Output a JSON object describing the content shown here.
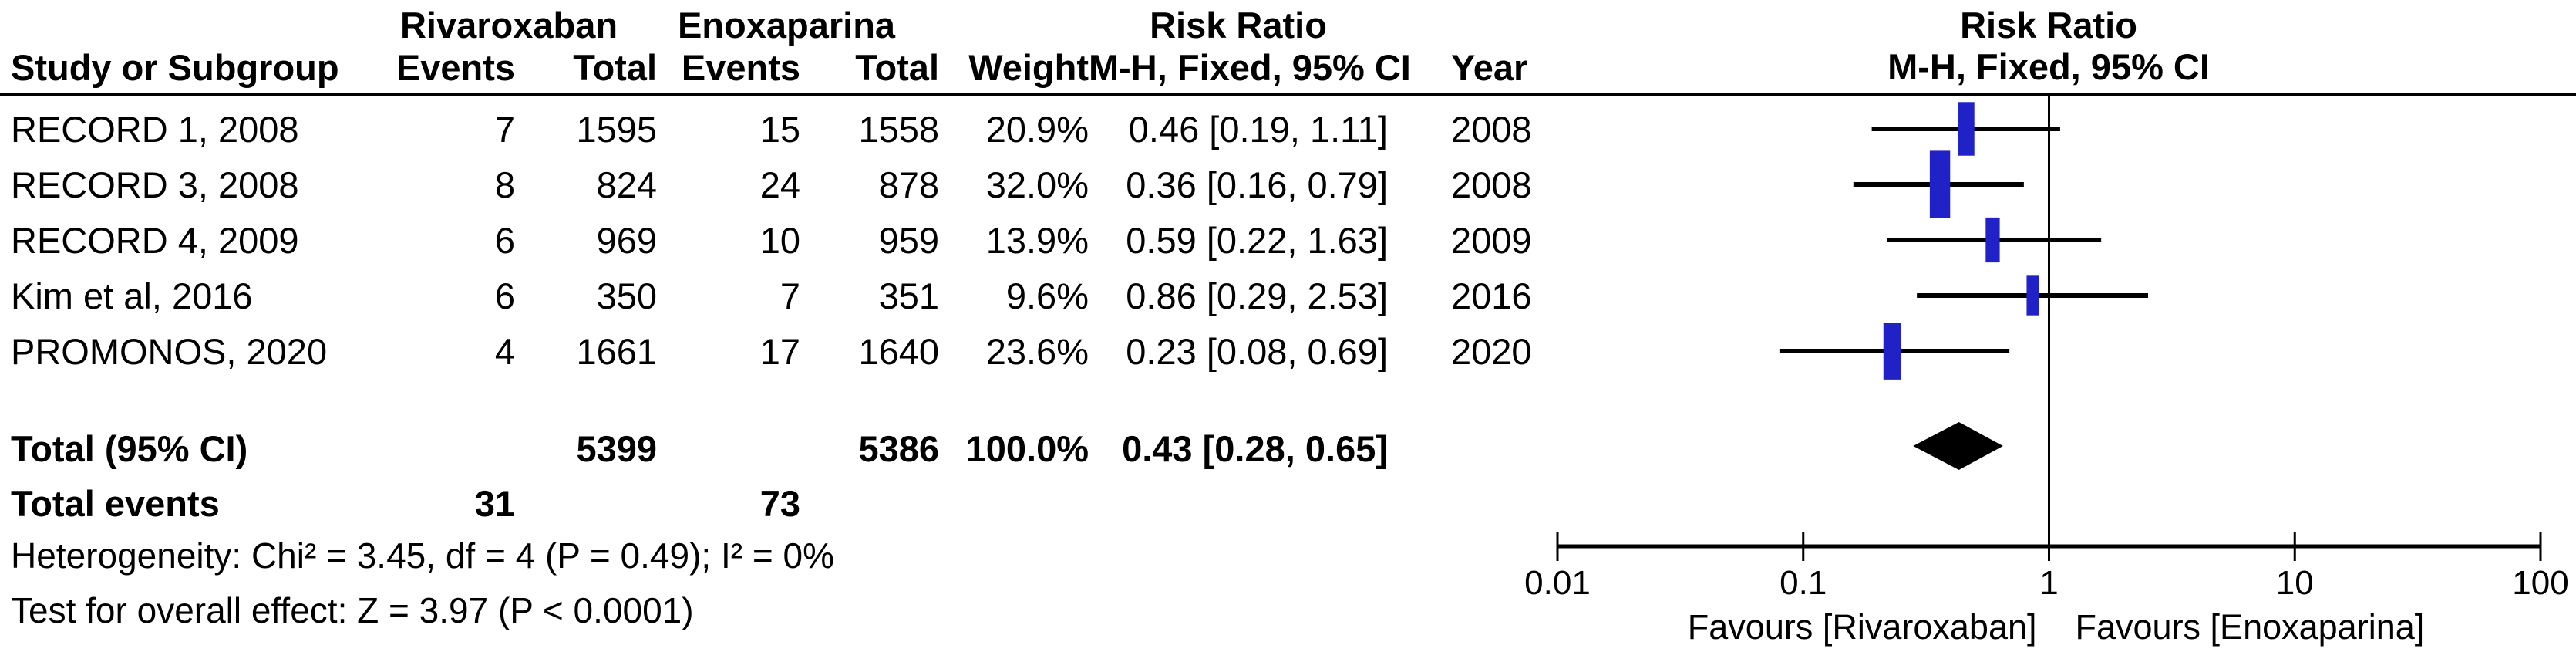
{
  "table": {
    "group_headers": {
      "rivaroxaban": "Rivaroxaban",
      "enoxaparina": "Enoxaparina",
      "risk_ratio": "Risk Ratio"
    },
    "col_headers": {
      "study": "Study or Subgroup",
      "events": "Events",
      "total": "Total",
      "weight": "Weight",
      "mh_ci": "M-H, Fixed, 95% CI",
      "year": "Year"
    },
    "rows": [
      {
        "study": "RECORD 1, 2008",
        "riva_events": "7",
        "riva_total": "1595",
        "enoxa_events": "15",
        "enoxa_total": "1558",
        "weight": "20.9%",
        "ci": "0.46 [0.19, 1.11]",
        "year": "2008"
      },
      {
        "study": "RECORD 3, 2008",
        "riva_events": "8",
        "riva_total": "824",
        "enoxa_events": "24",
        "enoxa_total": "878",
        "weight": "32.0%",
        "ci": "0.36 [0.16, 0.79]",
        "year": "2008"
      },
      {
        "study": "RECORD 4, 2009",
        "riva_events": "6",
        "riva_total": "969",
        "enoxa_events": "10",
        "enoxa_total": "959",
        "weight": "13.9%",
        "ci": "0.59 [0.22, 1.63]",
        "year": "2009"
      },
      {
        "study": "Kim et al, 2016",
        "riva_events": "6",
        "riva_total": "350",
        "enoxa_events": "7",
        "enoxa_total": "351",
        "weight": "9.6%",
        "ci": "0.86 [0.29, 2.53]",
        "year": "2016"
      },
      {
        "study": "PROMONOS, 2020",
        "riva_events": "4",
        "riva_total": "1661",
        "enoxa_events": "17",
        "enoxa_total": "1640",
        "weight": "23.6%",
        "ci": "0.23 [0.08, 0.69]",
        "year": "2020"
      }
    ],
    "total_row": {
      "label": "Total (95% CI)",
      "riva_total": "5399",
      "enoxa_total": "5386",
      "weight": "100.0%",
      "ci": "0.43 [0.28, 0.65]"
    },
    "total_events_row": {
      "label": "Total events",
      "riva": "31",
      "enoxa": "73"
    },
    "heterogeneity": "Heterogeneity: Chi² = 3.45, df = 4 (P = 0.49); I² = 0%",
    "overall_effect": "Test for overall effect: Z = 3.97 (P < 0.0001)"
  },
  "plot": {
    "header_line1": "Risk Ratio",
    "header_line2": "M-H, Fixed, 95% CI",
    "axis_tick_labels": [
      "0.01",
      "0.1",
      "1",
      "10",
      "100"
    ],
    "favours_left": "Favours [Rivaroxaban]",
    "favours_right": "Favours [Enoxaparina]"
  },
  "chart_data": {
    "type": "forest",
    "title": "Risk Ratio, M-H, Fixed, 95% CI — Rivaroxaban vs Enoxaparina",
    "x_scale": "log10",
    "xlim": [
      0.01,
      100
    ],
    "axis_ticks": [
      0.01,
      0.1,
      1,
      10,
      100
    ],
    "marker_color": "#2121C8",
    "diamond_color": "#000000",
    "studies": [
      {
        "name": "RECORD 1, 2008",
        "events_riva": 7,
        "total_riva": 1595,
        "events_enoxa": 15,
        "total_enoxa": 1558,
        "weight_pct": 20.9,
        "rr": 0.46,
        "ci_low": 0.19,
        "ci_high": 1.11,
        "year": 2008
      },
      {
        "name": "RECORD 3, 2008",
        "events_riva": 8,
        "total_riva": 824,
        "events_enoxa": 24,
        "total_enoxa": 878,
        "weight_pct": 32.0,
        "rr": 0.36,
        "ci_low": 0.16,
        "ci_high": 0.79,
        "year": 2008
      },
      {
        "name": "RECORD 4, 2009",
        "events_riva": 6,
        "total_riva": 969,
        "events_enoxa": 10,
        "total_enoxa": 959,
        "weight_pct": 13.9,
        "rr": 0.59,
        "ci_low": 0.22,
        "ci_high": 1.63,
        "year": 2009
      },
      {
        "name": "Kim et al, 2016",
        "events_riva": 6,
        "total_riva": 350,
        "events_enoxa": 7,
        "total_enoxa": 351,
        "weight_pct": 9.6,
        "rr": 0.86,
        "ci_low": 0.29,
        "ci_high": 2.53,
        "year": 2016
      },
      {
        "name": "PROMONOS, 2020",
        "events_riva": 4,
        "total_riva": 1661,
        "events_enoxa": 17,
        "total_enoxa": 1640,
        "weight_pct": 23.6,
        "rr": 0.23,
        "ci_low": 0.08,
        "ci_high": 0.69,
        "year": 2020
      }
    ],
    "total": {
      "total_riva": 5399,
      "total_enoxa": 5386,
      "weight_pct": 100.0,
      "rr": 0.43,
      "ci_low": 0.28,
      "ci_high": 0.65
    },
    "total_events": {
      "riva": 31,
      "enoxa": 73
    },
    "heterogeneity": {
      "chi2": 3.45,
      "df": 4,
      "p": 0.49,
      "i2_pct": 0
    },
    "overall_effect": {
      "z": 3.97,
      "p": "< 0.0001"
    }
  }
}
